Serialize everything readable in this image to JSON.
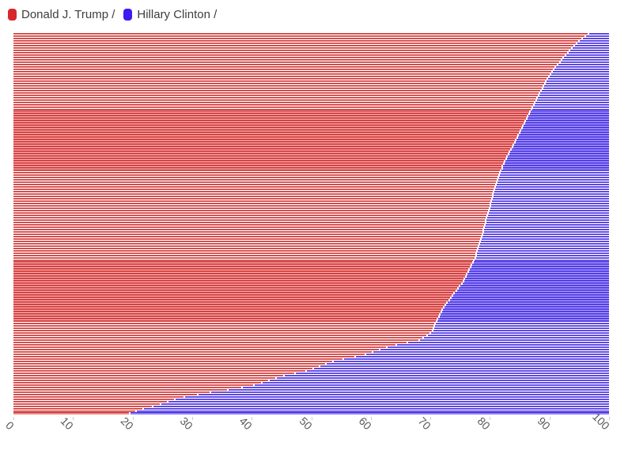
{
  "legend": {
    "items": [
      {
        "label": "Donald J. Trump /",
        "color": "#d7262c"
      },
      {
        "label": "Hillary Clinton /",
        "color": "#3a1df0"
      }
    ]
  },
  "axis": {
    "tick_color": "#cccccc",
    "label_color": "#5a5a5a"
  },
  "chart_data": {
    "type": "bar",
    "orientation": "horizontal",
    "stacked": true,
    "title": "",
    "xlabel": "",
    "ylabel": "",
    "xlim": [
      0,
      100
    ],
    "x_ticks": [
      0,
      10,
      20,
      30,
      40,
      50,
      60,
      70,
      80,
      90,
      100
    ],
    "legend_position": "top-left",
    "grid": false,
    "bar_count": 162,
    "sort": "descending by Donald J. Trump share",
    "series": [
      {
        "name": "Donald J. Trump /",
        "fill_color": "#ef8f8f",
        "edge_color": "#c52222",
        "values": [
          96.4,
          95.9,
          95.3,
          94.8,
          94.4,
          94.0,
          93.6,
          93.2,
          92.9,
          92.6,
          92.2,
          91.9,
          91.6,
          91.2,
          90.9,
          90.6,
          90.3,
          90.0,
          89.8,
          89.5,
          89.3,
          89.1,
          88.9,
          88.7,
          88.4,
          88.2,
          88.0,
          87.8,
          87.6,
          87.4,
          87.2,
          87.0,
          86.8,
          86.6,
          86.4,
          86.2,
          86.0,
          85.8,
          85.6,
          85.4,
          85.2,
          85.0,
          84.8,
          84.6,
          84.4,
          84.2,
          84.0,
          83.8,
          83.6,
          83.4,
          83.2,
          83.0,
          82.8,
          82.6,
          82.4,
          82.2,
          82.0,
          81.9,
          81.7,
          81.6,
          81.4,
          81.3,
          81.1,
          81.0,
          80.9,
          80.7,
          80.6,
          80.5,
          80.4,
          80.3,
          80.2,
          80.1,
          80.0,
          79.9,
          79.8,
          79.7,
          79.5,
          79.4,
          79.3,
          79.2,
          79.1,
          79.0,
          78.9,
          78.8,
          78.7,
          78.6,
          78.5,
          78.4,
          78.2,
          78.1,
          77.9,
          77.8,
          77.7,
          77.6,
          77.5,
          77.4,
          77.2,
          77.0,
          76.8,
          76.6,
          76.4,
          76.2,
          76.0,
          75.8,
          75.6,
          75.4,
          75.1,
          74.8,
          74.5,
          74.2,
          73.9,
          73.6,
          73.3,
          73.0,
          72.7,
          72.4,
          72.1,
          71.9,
          71.7,
          71.5,
          71.3,
          71.1,
          70.9,
          70.7,
          70.5,
          70.4,
          70.2,
          69.8,
          69.3,
          68.7,
          68.0,
          66.0,
          64.2,
          62.6,
          61.3,
          60.2,
          59.0,
          57.2,
          55.3,
          53.5,
          52.3,
          51.2,
          50.2,
          49.0,
          47.2,
          45.3,
          44.0,
          42.8,
          41.6,
          40.2,
          38.2,
          35.8,
          33.0,
          30.8,
          28.6,
          27.0,
          25.8,
          24.6,
          23.2,
          21.6,
          20.4,
          19.4
        ]
      },
      {
        "name": "Hillary Clinton /",
        "fill_color": "#9184f7",
        "edge_color": "#3a1fd9",
        "values": [
          3.6,
          4.1,
          4.7,
          5.2,
          5.6,
          6.0,
          6.4,
          6.8,
          7.1,
          7.4,
          7.8,
          8.1,
          8.4,
          8.8,
          9.1,
          9.4,
          9.7,
          10.0,
          10.2,
          10.5,
          10.7,
          10.9,
          11.1,
          11.3,
          11.6,
          11.8,
          12.0,
          12.2,
          12.4,
          12.6,
          12.8,
          13.0,
          13.2,
          13.4,
          13.6,
          13.8,
          14.0,
          14.2,
          14.4,
          14.6,
          14.8,
          15.0,
          15.2,
          15.4,
          15.6,
          15.8,
          16.0,
          16.2,
          16.4,
          16.6,
          16.8,
          17.0,
          17.2,
          17.4,
          17.6,
          17.8,
          18.0,
          18.1,
          18.3,
          18.4,
          18.6,
          18.7,
          18.9,
          19.0,
          19.1,
          19.3,
          19.4,
          19.5,
          19.6,
          19.7,
          19.8,
          19.9,
          20.0,
          20.1,
          20.2,
          20.3,
          20.5,
          20.6,
          20.7,
          20.8,
          20.9,
          21.0,
          21.1,
          21.2,
          21.3,
          21.4,
          21.5,
          21.6,
          21.8,
          21.9,
          22.1,
          22.2,
          22.3,
          22.4,
          22.5,
          22.6,
          22.8,
          23.0,
          23.2,
          23.4,
          23.6,
          23.8,
          24.0,
          24.2,
          24.4,
          24.6,
          24.9,
          25.2,
          25.5,
          25.8,
          26.1,
          26.4,
          26.7,
          27.0,
          27.3,
          27.6,
          27.9,
          28.1,
          28.3,
          28.5,
          28.7,
          28.9,
          29.1,
          29.3,
          29.5,
          29.6,
          29.8,
          30.2,
          30.7,
          31.3,
          32.0,
          34.0,
          35.8,
          37.4,
          38.7,
          39.8,
          41.0,
          42.8,
          44.7,
          46.5,
          47.7,
          48.8,
          49.8,
          51.0,
          52.8,
          54.7,
          56.0,
          57.2,
          58.4,
          59.8,
          61.8,
          64.2,
          67.0,
          69.2,
          71.4,
          73.0,
          74.2,
          75.4,
          76.8,
          78.4,
          79.6,
          80.6
        ]
      }
    ]
  }
}
